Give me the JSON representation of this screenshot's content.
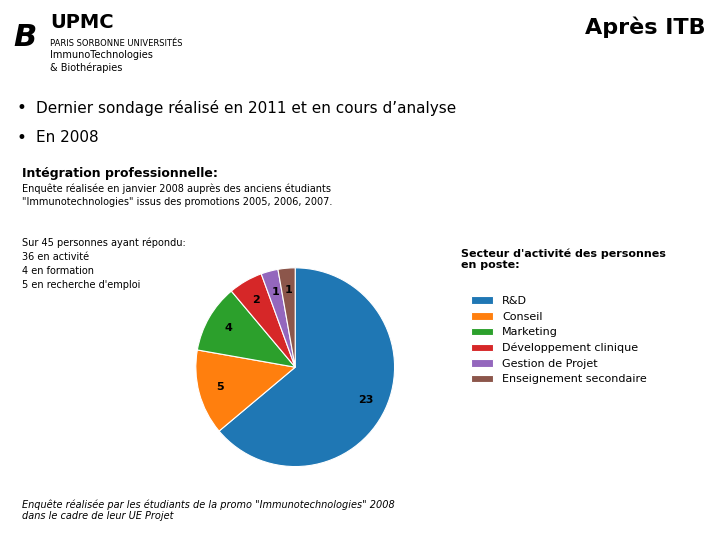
{
  "chart_data": {
    "type": "pie",
    "title": "Intégration professionnelle:",
    "subtitle": "Enquête réalisée en janvier 2008 auprès des anciens étudiants\n\"Immunotechnologies\" issus des promotions 2005, 2006, 2007.",
    "categories": [
      "R&D",
      "Conseil",
      "Marketing",
      "Développement clinique",
      "Gestion de Projet",
      "Enseignement secondaire"
    ],
    "values": [
      23,
      5,
      4,
      2,
      1,
      1
    ],
    "data_labels": true,
    "legend": "upper left",
    "annotations": [
      "Après ITB",
      "B",
      "UPMC",
      "PARIS SORBONNE UNIVERSITÉS",
      "ImmunoTechnologies",
      "& Biothérapies",
      "•",
      "Dernier sondage réalisé en 2011 et en cours d’analyse",
      "•",
      "En 2008",
      "Sur 45 personnes ayant répondu:\n36 en activité\n4 en formation\n5 en recherche d'emploi",
      "Secteur d'activité des personnes\nen poste:",
      "Enquête réalisée par les étudiants de la promo \"Immunotechnologies\" 2008\ndans le cadre de leur UE Projet"
    ]
  }
}
